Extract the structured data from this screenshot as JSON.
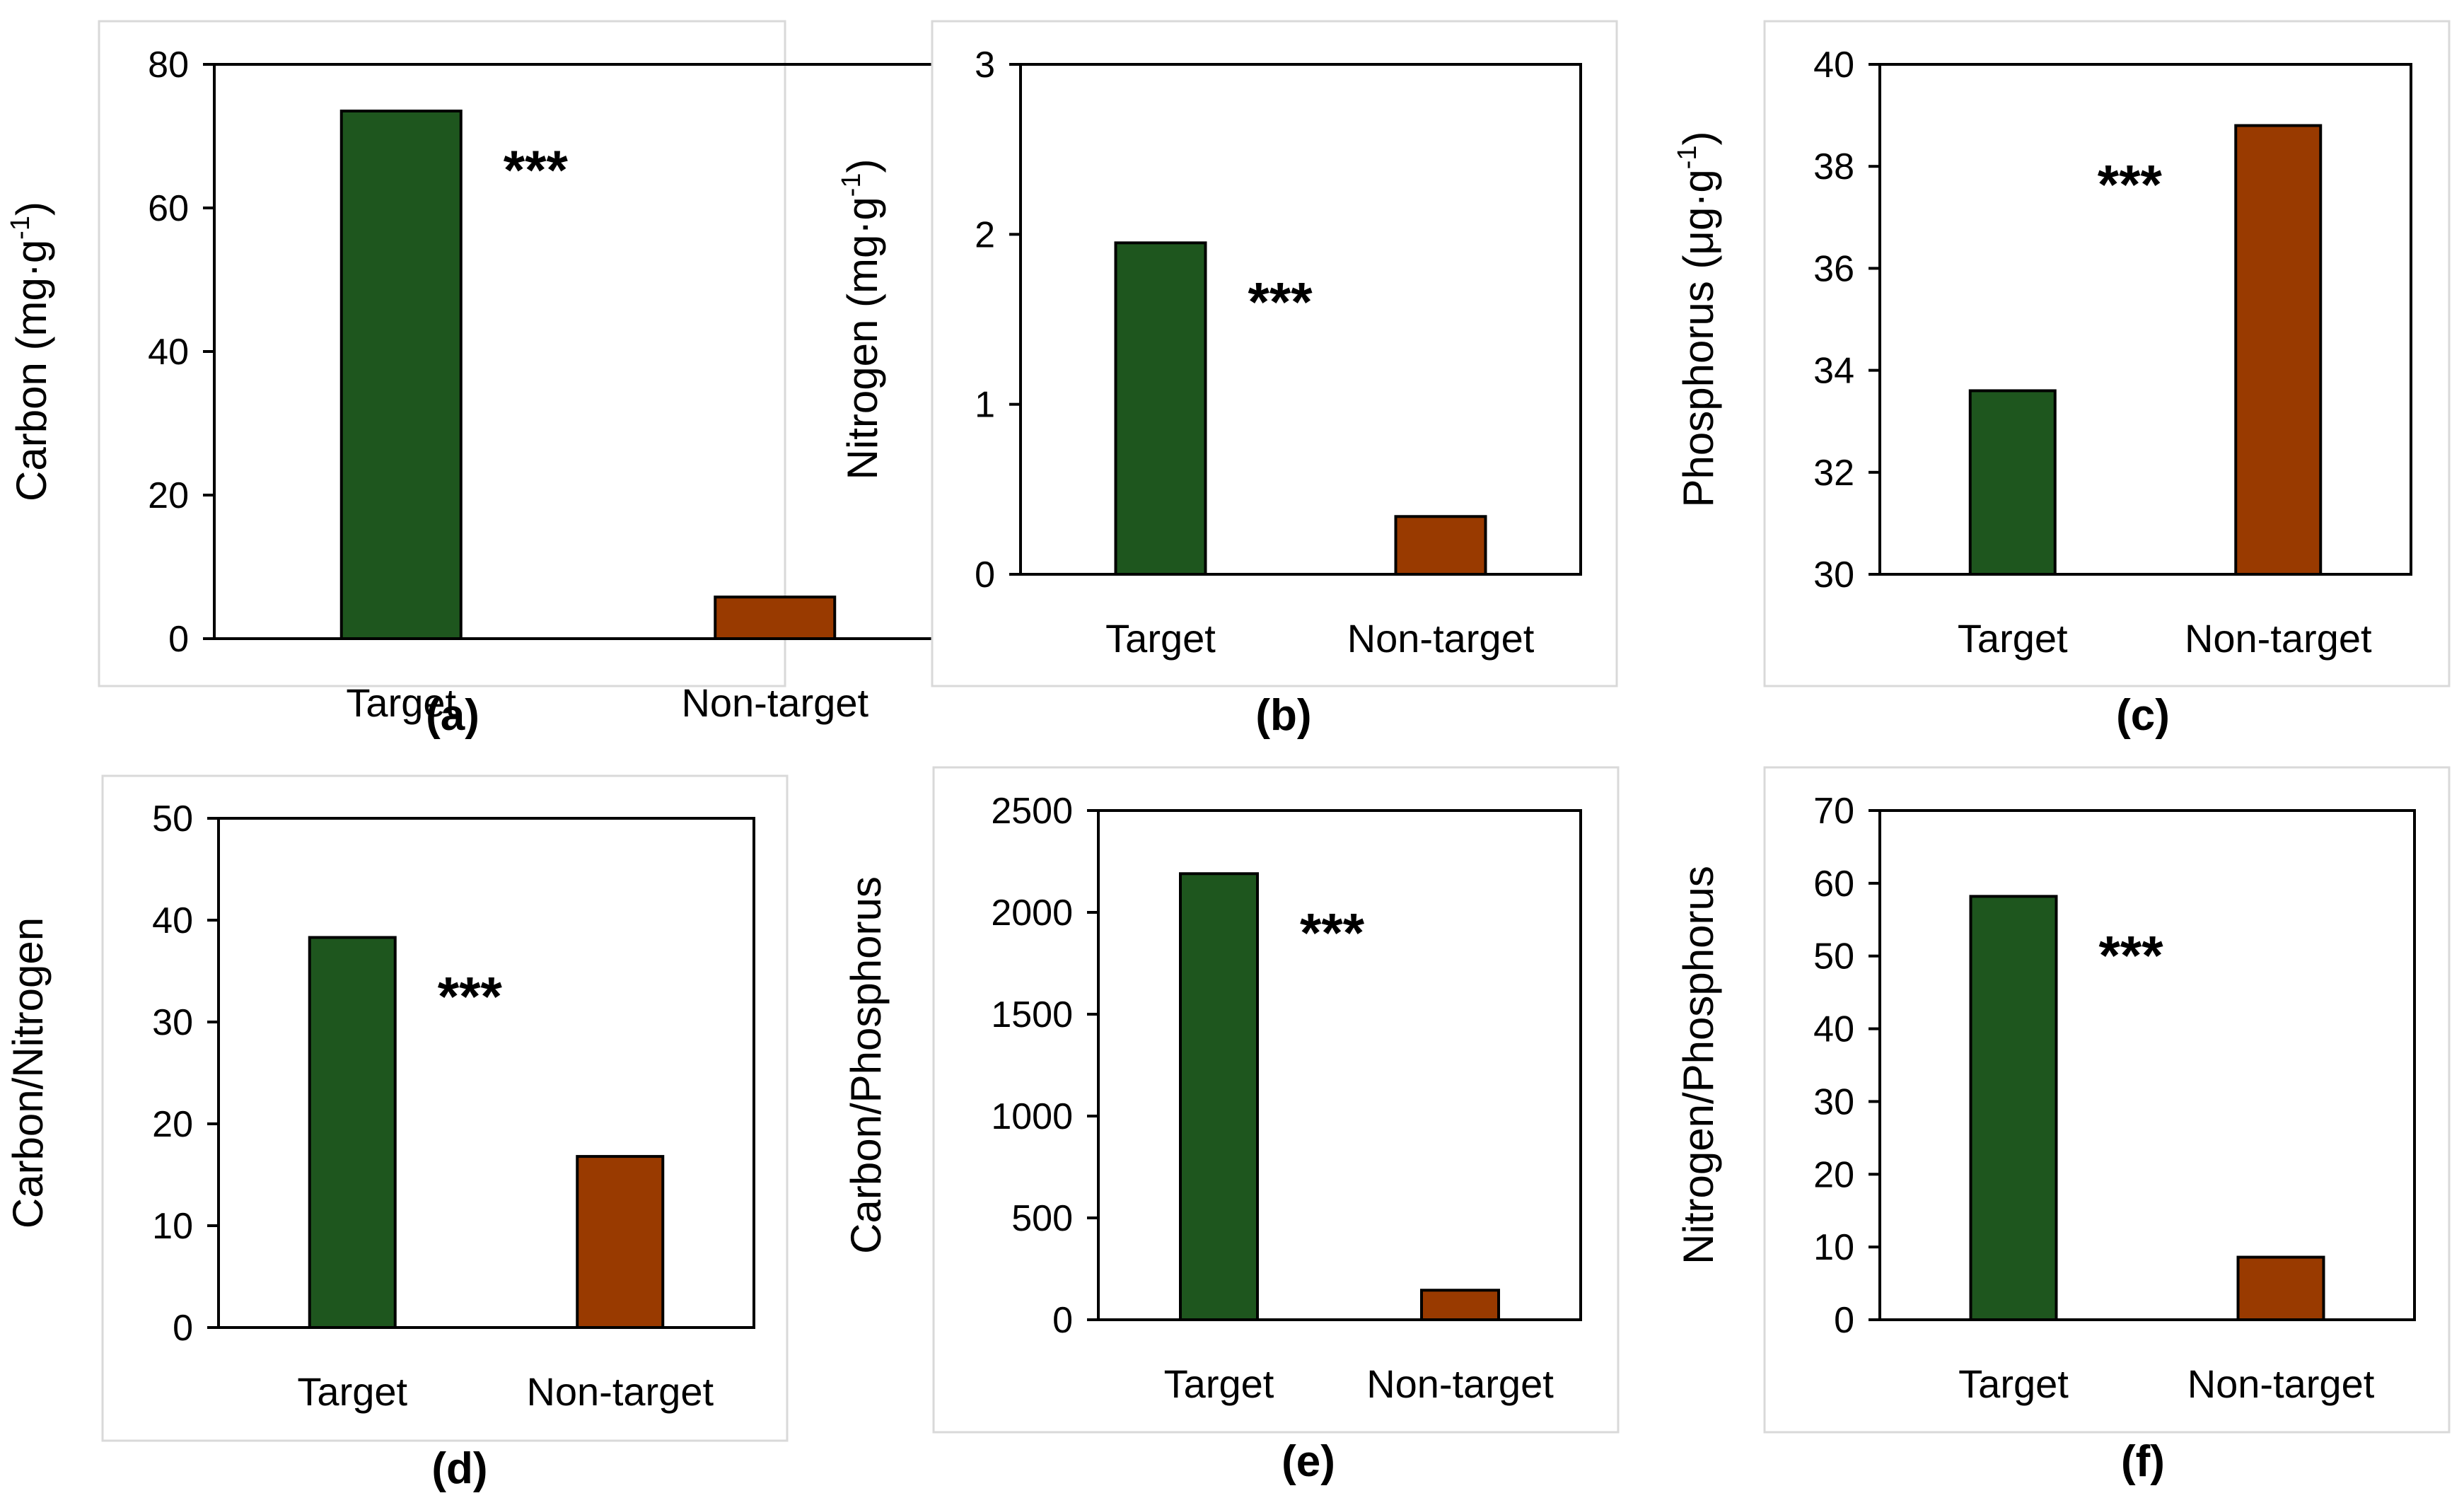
{
  "colors": {
    "target": "#1e561e",
    "nontarget": "#993a00"
  },
  "chart_data": [
    {
      "type": "bar",
      "panel": "(a)",
      "categories": [
        "Target",
        "Non-target"
      ],
      "values": [
        73.5,
        5.8
      ],
      "ylabel": "Carbon (mg·g",
      "ylabel_sup": "-1",
      "ylabel_tail": ")",
      "ylim": [
        0,
        80
      ],
      "ticks": [
        "0",
        "20",
        "40",
        "60",
        "80"
      ],
      "annotation": "***"
    },
    {
      "type": "bar",
      "panel": "(b)",
      "categories": [
        "Target",
        "Non-target"
      ],
      "values": [
        1.95,
        0.34
      ],
      "ylabel": "Nitrogen (mg·g",
      "ylabel_sup": "-1",
      "ylabel_tail": ")",
      "ylim": [
        0,
        3
      ],
      "ticks": [
        "0",
        "1",
        "2",
        "3"
      ],
      "annotation": "***"
    },
    {
      "type": "bar",
      "panel": "(c)",
      "categories": [
        "Target",
        "Non-target"
      ],
      "values": [
        33.6,
        38.8
      ],
      "ylabel": "Phosphorus (μg·g",
      "ylabel_sup": "-1",
      "ylabel_tail": ")",
      "ylim": [
        30,
        40
      ],
      "ticks": [
        "30",
        "32",
        "34",
        "36",
        "38",
        "40"
      ],
      "annotation": "***"
    },
    {
      "type": "bar",
      "panel": "(d)",
      "categories": [
        "Target",
        "Non-target"
      ],
      "values": [
        38.3,
        16.8
      ],
      "ylabel": "Carbon/Nitrogen",
      "ylabel_sup": "",
      "ylabel_tail": "",
      "ylim": [
        0,
        50
      ],
      "ticks": [
        "0",
        "10",
        "20",
        "30",
        "40",
        "50"
      ],
      "annotation": "***"
    },
    {
      "type": "bar",
      "panel": "(e)",
      "categories": [
        "Target",
        "Non-target"
      ],
      "values": [
        2190,
        145
      ],
      "ylabel": "Carbon/Phosphorus",
      "ylabel_sup": "",
      "ylabel_tail": "",
      "ylim": [
        0,
        2500
      ],
      "ticks": [
        "0",
        "500",
        "1000",
        "1500",
        "2000",
        "2500"
      ],
      "annotation": "***"
    },
    {
      "type": "bar",
      "panel": "(f)",
      "categories": [
        "Target",
        "Non-target"
      ],
      "values": [
        58.2,
        8.6
      ],
      "ylabel": "Nitrogen/Phosphorus",
      "ylabel_sup": "",
      "ylabel_tail": "",
      "ylim": [
        0,
        70
      ],
      "ticks": [
        "0",
        "10",
        "20",
        "30",
        "40",
        "50",
        "60",
        "70"
      ],
      "annotation": "***"
    }
  ]
}
